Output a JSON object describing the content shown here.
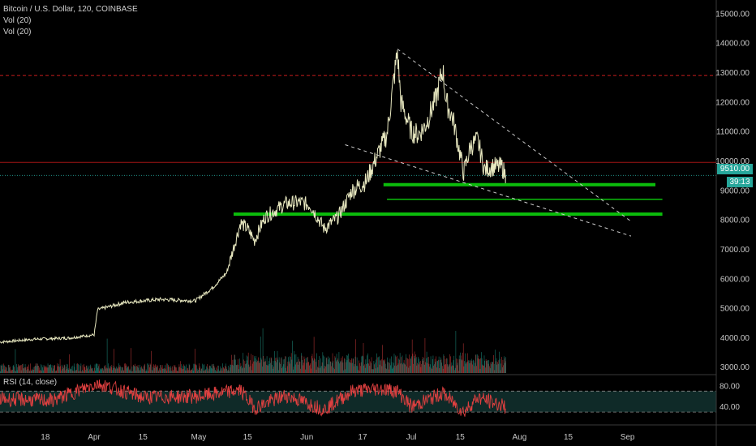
{
  "header": {
    "symbol_line": "Bitcoin / U.S. Dollar, 120, COINBASE",
    "vol_lines": [
      "Vol (20)",
      "Vol (20)"
    ]
  },
  "rsi_panel": {
    "label": "RSI (14, close)",
    "levels": [
      "80.00",
      "40.00"
    ]
  },
  "price_axis": {
    "ticks": [
      "15000.00",
      "14000.00",
      "13000.00",
      "12000.00",
      "11000.00",
      "10000.00",
      "9000.00",
      "8000.00",
      "7000.00",
      "6000.00",
      "5000.00",
      "4000.00",
      "3000.00"
    ],
    "current_price_label": "9510.00",
    "countdown_label": "39:13"
  },
  "time_axis": {
    "ticks": [
      "18",
      "Apr",
      "15",
      "May",
      "15",
      "Jun",
      "17",
      "Jul",
      "15",
      "Aug",
      "15",
      "Sep"
    ]
  },
  "colors": {
    "background": "#000000",
    "candle_line": "#e8e8c0",
    "vol_up": "#1f8f80",
    "vol_down": "#c83a3a",
    "support_band": "#0bbd0b",
    "resistance_dashed": "#c81e1e",
    "resistance_solid": "#a01414",
    "trendline": "#d0d0d0",
    "rsi_line": "#e04040",
    "rsi_band": "#0f2a28",
    "price_tag": "#26a69a"
  },
  "chart_data": {
    "type": "line",
    "title": "Bitcoin / U.S. Dollar, 120, COINBASE",
    "xlabel": "",
    "ylabel": "",
    "ylim": [
      2800,
      15300
    ],
    "grid": false,
    "series": [
      {
        "name": "Bitcoin / U.S. Dollar",
        "x": [
          "2019-03-05",
          "2019-03-15",
          "2019-03-25",
          "2019-04-01",
          "2019-04-02",
          "2019-04-10",
          "2019-04-20",
          "2019-04-30",
          "2019-05-05",
          "2019-05-09",
          "2019-05-13",
          "2019-05-15",
          "2019-05-17",
          "2019-05-20",
          "2019-05-26",
          "2019-05-30",
          "2019-06-02",
          "2019-06-06",
          "2019-06-10",
          "2019-06-14",
          "2019-06-18",
          "2019-06-22",
          "2019-06-24",
          "2019-06-26",
          "2019-06-27",
          "2019-06-28",
          "2019-07-01",
          "2019-07-03",
          "2019-07-05",
          "2019-07-08",
          "2019-07-10",
          "2019-07-11",
          "2019-07-13",
          "2019-07-16",
          "2019-07-18",
          "2019-07-20",
          "2019-07-22",
          "2019-07-24",
          "2019-07-27",
          "2019-07-28"
        ],
        "values": [
          3850,
          3950,
          3990,
          4100,
          4950,
          5200,
          5300,
          5250,
          5700,
          6200,
          7900,
          7700,
          7300,
          8100,
          8550,
          8600,
          8500,
          7700,
          8100,
          9000,
          9300,
          10400,
          10900,
          12800,
          13700,
          12000,
          11000,
          10900,
          11200,
          12100,
          13100,
          12000,
          11400,
          9600,
          10500,
          10700,
          9700,
          9800,
          9800,
          9510
        ]
      },
      {
        "name": "RSI (14, close)",
        "x": [
          "2019-03-05",
          "2019-03-20",
          "2019-04-02",
          "2019-04-15",
          "2019-05-01",
          "2019-05-13",
          "2019-05-17",
          "2019-05-26",
          "2019-06-06",
          "2019-06-14",
          "2019-06-22",
          "2019-06-27",
          "2019-07-01",
          "2019-07-10",
          "2019-07-16",
          "2019-07-20",
          "2019-07-28"
        ],
        "values": [
          55,
          52,
          85,
          58,
          60,
          72,
          38,
          62,
          35,
          70,
          75,
          70,
          40,
          66,
          30,
          58,
          40
        ]
      }
    ],
    "annotations": [
      {
        "type": "horizontal_dashed",
        "y": 12900
      },
      {
        "type": "horizontal_line",
        "y": 9950
      },
      {
        "type": "support_band",
        "y": [
          9150,
          9250
        ],
        "from": "2019-06-23",
        "to": "2019-09-09"
      },
      {
        "type": "support_band",
        "y": [
          8150,
          8250
        ],
        "from": "2019-05-11",
        "to": "2019-09-11"
      },
      {
        "type": "horizontal_line",
        "y": 8700,
        "from": "2019-06-24",
        "to": "2019-09-11"
      },
      {
        "type": "trendline",
        "from": [
          "2019-06-27",
          13800
        ],
        "to": [
          "2019-09-02",
          7950
        ]
      },
      {
        "type": "trendline",
        "from": [
          "2019-06-12",
          10550
        ],
        "to": [
          "2019-09-02",
          7450
        ]
      }
    ]
  }
}
